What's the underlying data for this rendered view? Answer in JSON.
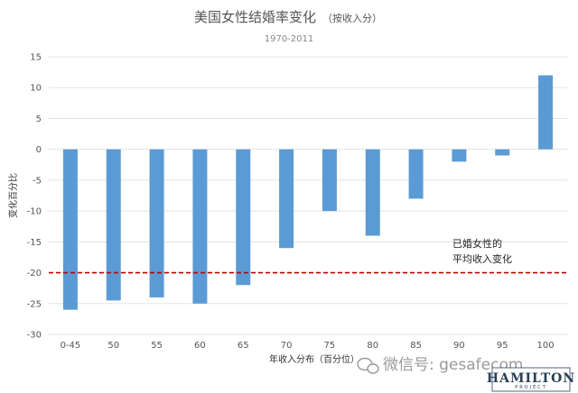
{
  "chart_data": {
    "type": "bar",
    "title": "美国女性结婚率变化",
    "title_note": "（按收入分）",
    "subtitle": "1970-2011",
    "xlabel": "年收入分布（百分位）",
    "ylabel": "变化百分比",
    "categories": [
      "0-45",
      "50",
      "55",
      "60",
      "65",
      "70",
      "75",
      "80",
      "85",
      "90",
      "95",
      "100"
    ],
    "values": [
      -26,
      -24.5,
      -24,
      -25,
      -22,
      -16,
      -10,
      -14,
      -8,
      -2,
      -1,
      12
    ],
    "ylim": [
      -30,
      15
    ],
    "yticks": [
      "15",
      "10",
      "5",
      "0",
      "-5",
      "-10",
      "-15",
      "-20",
      "-25",
      "-30"
    ],
    "grid": true,
    "bar_color": "#5b9bd5",
    "reference_line": {
      "value": -20,
      "label_line1": "已婚女性的",
      "label_line2": "平均收入变化",
      "color": "#c00000"
    }
  },
  "watermark": {
    "text": "微信号: gesafecom",
    "logo": "HAMILTON",
    "logo_sub": "PROJECT"
  }
}
